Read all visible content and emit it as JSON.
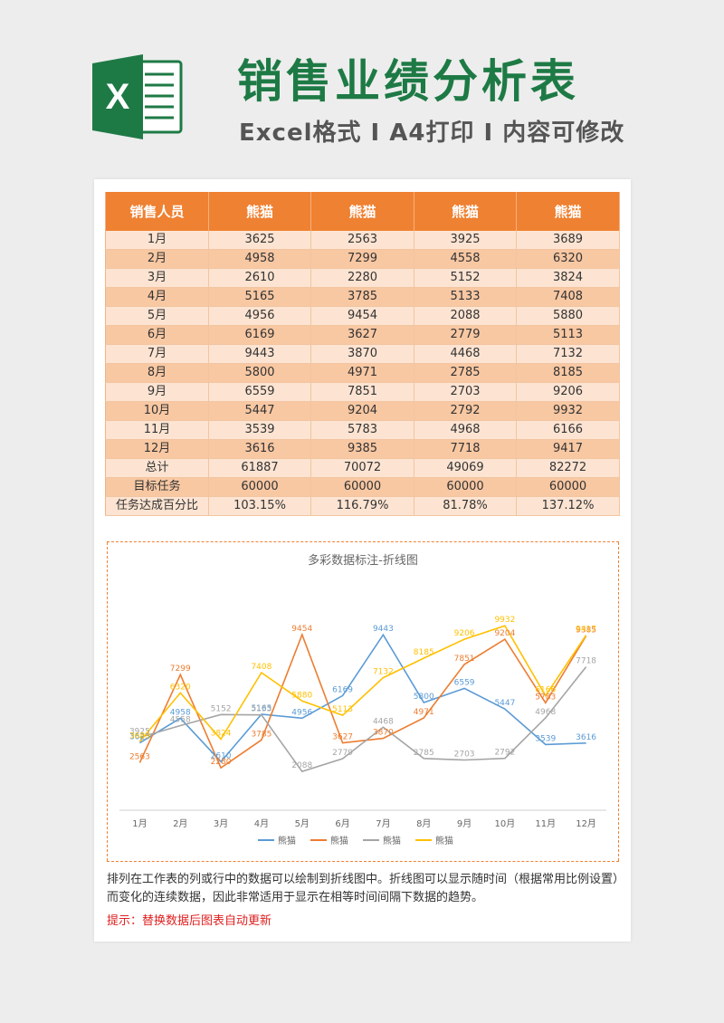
{
  "header": {
    "title": "销售业绩分析表",
    "subtitle": "Excel格式 I A4打印 I 内容可修改",
    "logo_letter": "X"
  },
  "table": {
    "headers": [
      "销售人员",
      "熊猫",
      "熊猫",
      "熊猫",
      "熊猫"
    ],
    "rows": [
      [
        "1月",
        "3625",
        "2563",
        "3925",
        "3689"
      ],
      [
        "2月",
        "4958",
        "7299",
        "4558",
        "6320"
      ],
      [
        "3月",
        "2610",
        "2280",
        "5152",
        "3824"
      ],
      [
        "4月",
        "5165",
        "3785",
        "5133",
        "7408"
      ],
      [
        "5月",
        "4956",
        "9454",
        "2088",
        "5880"
      ],
      [
        "6月",
        "6169",
        "3627",
        "2779",
        "5113"
      ],
      [
        "7月",
        "9443",
        "3870",
        "4468",
        "7132"
      ],
      [
        "8月",
        "5800",
        "4971",
        "2785",
        "8185"
      ],
      [
        "9月",
        "6559",
        "7851",
        "2703",
        "9206"
      ],
      [
        "10月",
        "5447",
        "9204",
        "2792",
        "9932"
      ],
      [
        "11月",
        "3539",
        "5783",
        "4968",
        "6166"
      ],
      [
        "12月",
        "3616",
        "9385",
        "7718",
        "9417"
      ],
      [
        "总计",
        "61887",
        "70072",
        "49069",
        "82272"
      ],
      [
        "目标任务",
        "60000",
        "60000",
        "60000",
        "60000"
      ],
      [
        "任务达成百分比",
        "103.15%",
        "116.79%",
        "81.78%",
        "137.12%"
      ]
    ]
  },
  "chart_data": {
    "type": "line",
    "title": "多彩数据标注-折线图",
    "categories": [
      "1月",
      "2月",
      "3月",
      "4月",
      "5月",
      "6月",
      "7月",
      "8月",
      "9月",
      "10月",
      "11月",
      "12月"
    ],
    "series": [
      {
        "name": "熊猫",
        "color": "#5b9bd5",
        "values": [
          3625,
          4958,
          2610,
          5165,
          4956,
          6169,
          9443,
          5800,
          6559,
          5447,
          3539,
          3616
        ]
      },
      {
        "name": "熊猫",
        "color": "#ed7d31",
        "values": [
          2563,
          7299,
          2280,
          3785,
          9454,
          3627,
          3870,
          4971,
          7851,
          9204,
          5783,
          9385
        ]
      },
      {
        "name": "熊猫",
        "color": "#a5a5a5",
        "values": [
          3925,
          4558,
          5152,
          5133,
          2088,
          2779,
          4468,
          2785,
          2703,
          2792,
          4968,
          7718
        ]
      },
      {
        "name": "熊猫",
        "color": "#ffc000",
        "values": [
          3689,
          6320,
          3824,
          7408,
          5880,
          5113,
          7132,
          8185,
          9206,
          9932,
          6166,
          9417
        ]
      }
    ],
    "ylim": [
      0,
      11500
    ],
    "legend": "bottom",
    "grid": false
  },
  "description": "排列在工作表的列或行中的数据可以绘制到折线图中。折线图可以显示随时间（根据常用比例设置）而变化的连续数据，因此非常适用于显示在相等时间间隔下数据的趋势。",
  "tip": "提示：替换数据后图表自动更新"
}
